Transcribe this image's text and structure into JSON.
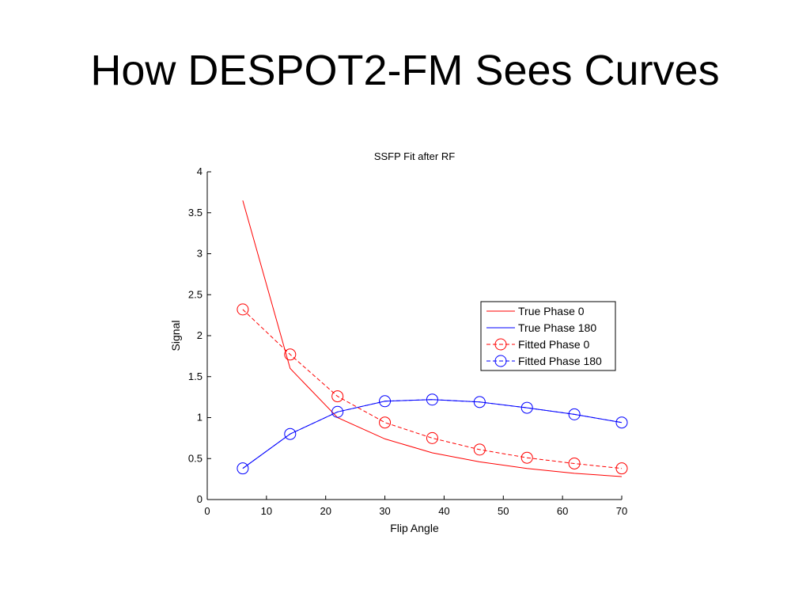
{
  "slide": {
    "title": "How DESPOT2-FM Sees Curves"
  },
  "chart_data": {
    "type": "line",
    "title": "SSFP Fit after RF",
    "xlabel": "Flip Angle",
    "ylabel": "Signal",
    "xlim": [
      0,
      70
    ],
    "ylim": [
      0,
      4
    ],
    "xticks": [
      0,
      10,
      20,
      30,
      40,
      50,
      60,
      70
    ],
    "yticks": [
      0,
      0.5,
      1,
      1.5,
      2,
      2.5,
      3,
      3.5,
      4
    ],
    "ytick_labels": [
      "0",
      "0.5",
      "1",
      "1.5",
      "2",
      "2.5",
      "3",
      "3.5",
      "4"
    ],
    "grid": false,
    "legend_position": "right",
    "x": [
      6,
      14,
      22,
      30,
      38,
      46,
      54,
      62,
      70
    ],
    "series": [
      {
        "name": "True Phase 0",
        "color": "#ff0000",
        "style": "solid",
        "marker": "none",
        "values": [
          3.65,
          1.6,
          1.0,
          0.74,
          0.57,
          0.46,
          0.38,
          0.32,
          0.28
        ]
      },
      {
        "name": "True Phase 180",
        "color": "#0000ff",
        "style": "solid",
        "marker": "none",
        "values": [
          0.38,
          0.8,
          1.07,
          1.2,
          1.22,
          1.19,
          1.12,
          1.04,
          0.94
        ]
      },
      {
        "name": "Fitted Phase 0",
        "color": "#ff0000",
        "style": "dashed",
        "marker": "circle",
        "values": [
          2.32,
          1.77,
          1.26,
          0.94,
          0.75,
          0.61,
          0.51,
          0.44,
          0.38
        ]
      },
      {
        "name": "Fitted Phase 180",
        "color": "#0000ff",
        "style": "dashed",
        "marker": "circle",
        "values": [
          0.38,
          0.8,
          1.07,
          1.2,
          1.22,
          1.19,
          1.12,
          1.04,
          0.94
        ]
      }
    ]
  }
}
